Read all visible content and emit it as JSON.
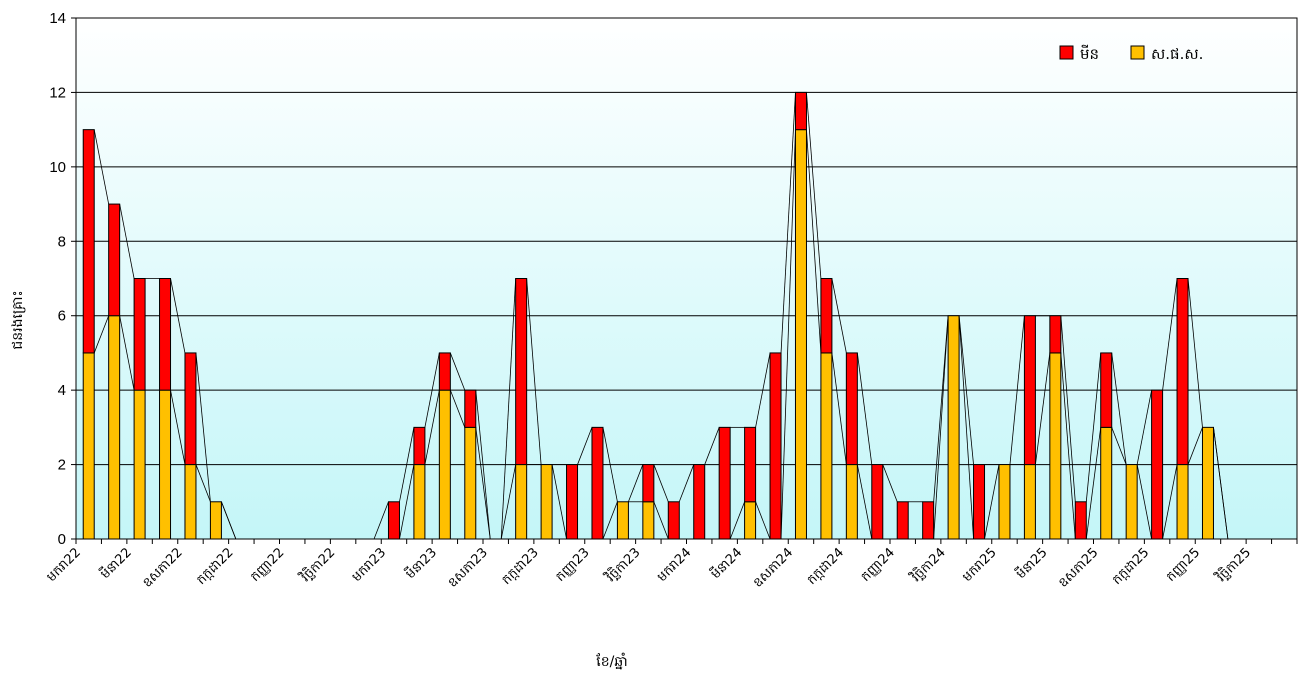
{
  "chart_data": {
    "type": "bar",
    "stacked": true,
    "title": "",
    "xlabel": "ខែ/ឆ្នាំ",
    "ylabel": "ជនរងគ្រោះ",
    "ylim": [
      0,
      14
    ],
    "yticks": [
      0,
      2,
      4,
      6,
      8,
      10,
      12,
      14
    ],
    "grid": true,
    "legend_position": "top-right",
    "categories": [
      "J22-1",
      "J22-2",
      "J22-3",
      "J22-4",
      "J22-5",
      "J22-6",
      "J22-7",
      "J22-8",
      "J22-9",
      "J22-10",
      "J22-11",
      "J22-12",
      "J23-1",
      "J23-2",
      "J23-3",
      "J23-4",
      "J23-5",
      "J23-6",
      "J23-7",
      "J23-8",
      "J23-9",
      "J23-10",
      "J23-11",
      "J23-12",
      "J24-1",
      "J24-2",
      "J24-3",
      "J24-4",
      "J24-5",
      "J24-6",
      "J24-7",
      "J24-8",
      "J24-9",
      "J24-10",
      "J24-11",
      "J24-12",
      "J25-1",
      "J25-2",
      "J25-3",
      "J25-4",
      "J25-5",
      "J25-6",
      "J25-7",
      "J25-8",
      "J25-9",
      "J25-10",
      "J25-11",
      "J25-12"
    ],
    "x_tick_labels": [
      {
        "index": 0,
        "label": "មករា22"
      },
      {
        "index": 2,
        "label": "មីនា22"
      },
      {
        "index": 4,
        "label": "ឧសភា22"
      },
      {
        "index": 6,
        "label": "កក្កដា22"
      },
      {
        "index": 8,
        "label": "កញ្ញា22"
      },
      {
        "index": 10,
        "label": "វិច្ឆិកា22"
      },
      {
        "index": 12,
        "label": "មករា23"
      },
      {
        "index": 14,
        "label": "មីនា23"
      },
      {
        "index": 16,
        "label": "ឧសភា23"
      },
      {
        "index": 18,
        "label": "កក្កដា23"
      },
      {
        "index": 20,
        "label": "កញ្ញា23"
      },
      {
        "index": 22,
        "label": "វិច្ឆិកា23"
      },
      {
        "index": 24,
        "label": "មករា24"
      },
      {
        "index": 26,
        "label": "មីនា24"
      },
      {
        "index": 28,
        "label": "ឧសភា24"
      },
      {
        "index": 30,
        "label": "កក្កដា24"
      },
      {
        "index": 32,
        "label": "កញ្ញា24"
      },
      {
        "index": 34,
        "label": "វិច្ឆិកា24"
      },
      {
        "index": 36,
        "label": "មករា25"
      },
      {
        "index": 38,
        "label": "មីនា25"
      },
      {
        "index": 40,
        "label": "ឧសភា25"
      },
      {
        "index": 42,
        "label": "កក្កដា25"
      },
      {
        "index": 44,
        "label": "កញ្ញា25"
      },
      {
        "index": 46,
        "label": "វិច្ឆិកា25"
      }
    ],
    "series": [
      {
        "name": "ស.ផ.ស.",
        "color": "#ffc000",
        "values": [
          5,
          6,
          4,
          4,
          2,
          1,
          0,
          0,
          0,
          0,
          0,
          0,
          0,
          2,
          4,
          3,
          0,
          2,
          2,
          0,
          0,
          1,
          1,
          0,
          0,
          0,
          1,
          0,
          11,
          5,
          2,
          0,
          0,
          0,
          6,
          0,
          2,
          2,
          5,
          0,
          3,
          2,
          0,
          2,
          3,
          0,
          0,
          0
        ]
      },
      {
        "name": "មីន",
        "color": "#ff0000",
        "values": [
          6,
          3,
          3,
          3,
          3,
          0,
          0,
          0,
          0,
          0,
          0,
          0,
          1,
          1,
          1,
          1,
          0,
          5,
          0,
          2,
          3,
          0,
          1,
          1,
          2,
          3,
          2,
          5,
          1,
          2,
          3,
          2,
          1,
          1,
          0,
          2,
          0,
          4,
          1,
          1,
          2,
          0,
          4,
          5,
          0,
          0,
          0,
          0
        ]
      }
    ]
  }
}
